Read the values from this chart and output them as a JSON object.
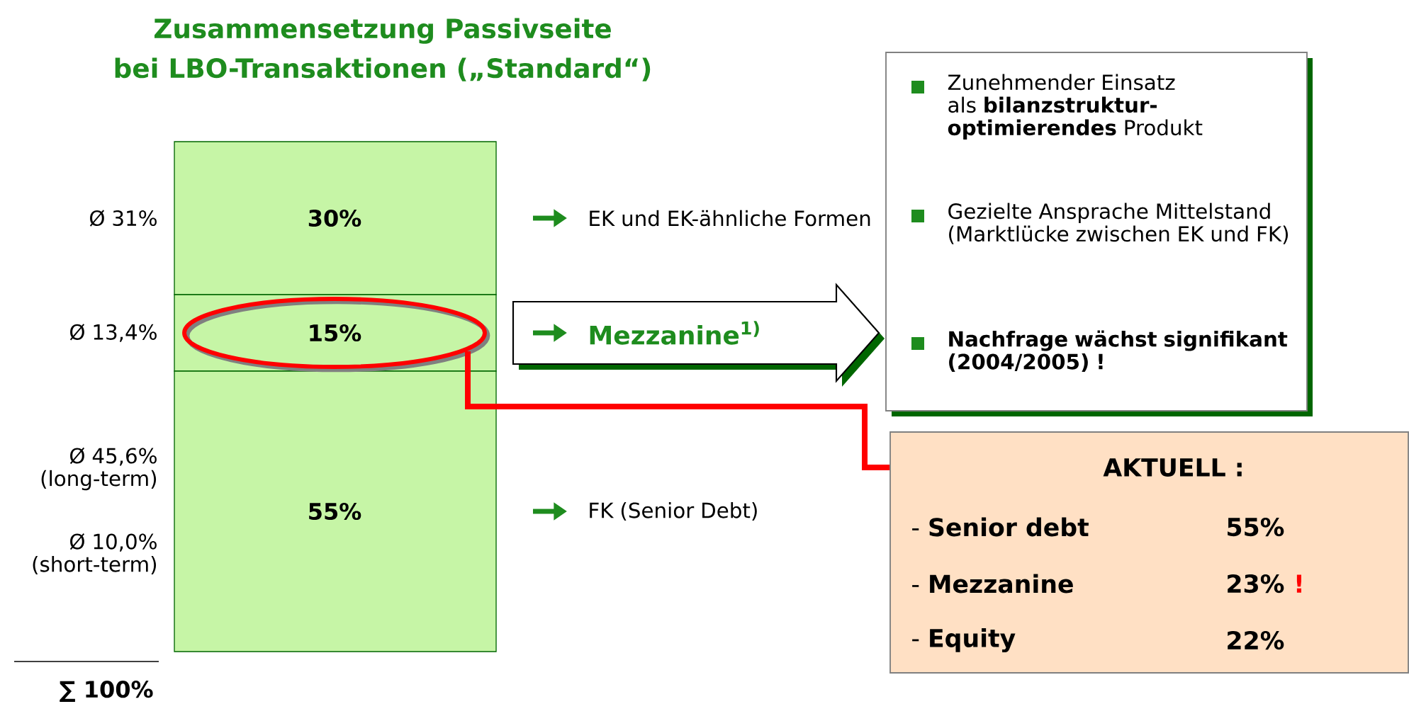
{
  "chart_data": {
    "type": "bar",
    "stacked": true,
    "tick_labels": false,
    "title": "Zusammensetzung Passivseite",
    "subtitle": "bei LBO-Transaktionen („Standard“)",
    "categories": [
      null
    ],
    "ylim": [
      0,
      100
    ],
    "series": [
      {
        "name": "FK (Senior Debt)",
        "color": "#c6f5a6",
        "values": [
          55
        ],
        "value_labels": [
          "55%"
        ]
      },
      {
        "name": "Mezzanine$^{1)}$",
        "color": "#c6f5a6",
        "values": [
          15
        ],
        "value_labels": [
          "15%"
        ]
      },
      {
        "name": "EK und EK-ähnliche Formen",
        "color": "#c6f5a6",
        "values": [
          30
        ],
        "value_labels": [
          "30%"
        ]
      }
    ],
    "annotations": [
      "Ø 31%",
      "Ø 13,4%",
      "Ø 45,6% (long-term)",
      "Ø 10,0% (short-term)",
      "∑ 100%",
      "Zunehmender Einsatz als **bilanzstruktur-optimierendes** Produkt",
      "Gezielte Ansprache Mittelstand (Marktlücke zwischen EK und FK)",
      "Nachfrage wächst signifikant (2004/2005) !",
      "AKTUELL :",
      "- **Senior debt**",
      "55%",
      "- **Mezzanine**",
      "23%",
      "!",
      "- **Equity**",
      "22%"
    ]
  }
}
